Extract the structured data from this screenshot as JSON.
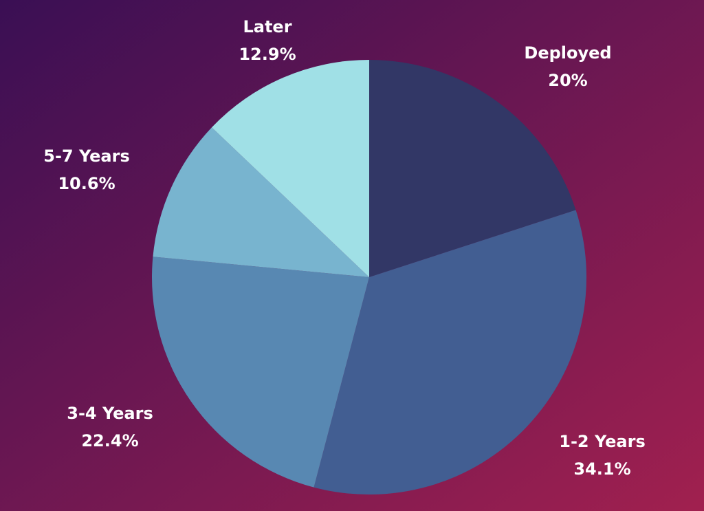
{
  "chart_data": {
    "type": "pie",
    "categories": [
      "Deployed",
      "1-2 Years",
      "3-4 Years",
      "5-7 Years",
      "Later"
    ],
    "values": [
      20,
      34.1,
      22.4,
      10.6,
      12.9
    ],
    "value_labels": [
      "20%",
      "34.1%",
      "22.4%",
      "10.6%",
      "12.9%"
    ],
    "colors": [
      "#323766",
      "#425e92",
      "#5888b2",
      "#78b4cf",
      "#a0e0e6"
    ]
  }
}
